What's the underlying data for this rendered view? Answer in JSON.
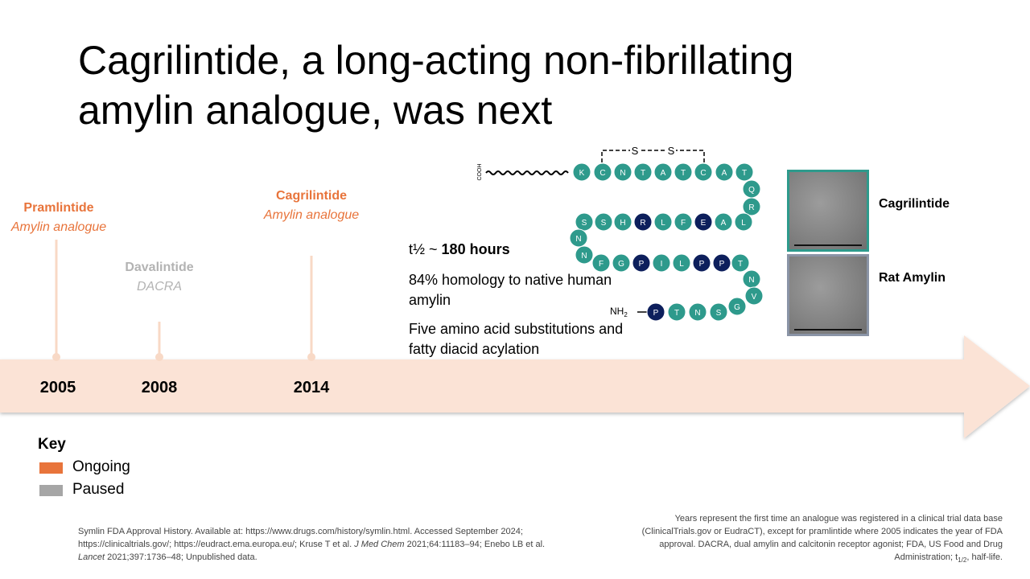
{
  "title": "Cagrilintide, a long-acting non-fibrillating amylin analogue, was next",
  "timeline": [
    {
      "name": "Pramlintide",
      "description": "Amylin analogue",
      "year": "2005",
      "status_color": "#e8743b"
    },
    {
      "name": "Davalintide",
      "description": "DACRA",
      "year": "2008",
      "status_color": "#b3b3b3"
    },
    {
      "name": "Cagrilintide",
      "description": "Amylin analogue",
      "year": "2014",
      "status_color": "#e8743b"
    }
  ],
  "properties": {
    "half_life": {
      "prefix": "t½ ~",
      "value": "180 hours"
    },
    "homology": "84% homology to native human amylin",
    "substitutions": "Five amino acid substitutions and fatty diacid acylation"
  },
  "peptide": {
    "c_terminus": "COOH",
    "n_terminus": {
      "text": "NH",
      "subscript": "2"
    },
    "disulfide": [
      "S",
      "S"
    ],
    "residues": [
      {
        "letter": "K",
        "color": "#2e9a8c"
      },
      {
        "letter": "C",
        "color": "#2e9a8c"
      },
      {
        "letter": "N",
        "color": "#2e9a8c"
      },
      {
        "letter": "T",
        "color": "#2e9a8c"
      },
      {
        "letter": "A",
        "color": "#2e9a8c"
      },
      {
        "letter": "T",
        "color": "#2e9a8c"
      },
      {
        "letter": "C",
        "color": "#2e9a8c"
      },
      {
        "letter": "A",
        "color": "#2e9a8c"
      },
      {
        "letter": "T",
        "color": "#2e9a8c"
      },
      {
        "letter": "Q",
        "color": "#2e9a8c"
      },
      {
        "letter": "R",
        "color": "#2e9a8c"
      },
      {
        "letter": "L",
        "color": "#2e9a8c"
      },
      {
        "letter": "A",
        "color": "#2e9a8c"
      },
      {
        "letter": "E",
        "color": "#0d1f5c"
      },
      {
        "letter": "F",
        "color": "#2e9a8c"
      },
      {
        "letter": "L",
        "color": "#2e9a8c"
      },
      {
        "letter": "R",
        "color": "#0d1f5c"
      },
      {
        "letter": "H",
        "color": "#2e9a8c"
      },
      {
        "letter": "S",
        "color": "#2e9a8c"
      },
      {
        "letter": "S",
        "color": "#2e9a8c"
      },
      {
        "letter": "N",
        "color": "#2e9a8c"
      },
      {
        "letter": "N",
        "color": "#2e9a8c"
      },
      {
        "letter": "F",
        "color": "#2e9a8c"
      },
      {
        "letter": "G",
        "color": "#2e9a8c"
      },
      {
        "letter": "P",
        "color": "#0d1f5c"
      },
      {
        "letter": "I",
        "color": "#2e9a8c"
      },
      {
        "letter": "L",
        "color": "#2e9a8c"
      },
      {
        "letter": "P",
        "color": "#0d1f5c"
      },
      {
        "letter": "P",
        "color": "#0d1f5c"
      },
      {
        "letter": "T",
        "color": "#2e9a8c"
      },
      {
        "letter": "N",
        "color": "#2e9a8c"
      },
      {
        "letter": "V",
        "color": "#2e9a8c"
      },
      {
        "letter": "G",
        "color": "#2e9a8c"
      },
      {
        "letter": "S",
        "color": "#2e9a8c"
      },
      {
        "letter": "N",
        "color": "#2e9a8c"
      },
      {
        "letter": "T",
        "color": "#2e9a8c"
      },
      {
        "letter": "P",
        "color": "#0d1f5c"
      }
    ]
  },
  "micrographs": [
    {
      "label": "Cagrilintide",
      "border_color": "#2e9a8c"
    },
    {
      "label": "Rat Amylin",
      "border_color": "#8a94a6"
    }
  ],
  "key": {
    "title": "Key",
    "items": [
      {
        "label": "Ongoing",
        "color": "#e8743b"
      },
      {
        "label": "Paused",
        "color": "#a6a6a6"
      }
    ]
  },
  "references": [
    "Symlin FDA Approval History. Available at: https://www.drugs.com/history/symlin.html. Accessed September 2024; https://clinicaltrials.gov/; https://eudract.ema.europa.eu/; Kruse T et al. ",
    "J Med Chem",
    " 2021;64:11183–94; Enebo LB et al. ",
    "Lancet",
    " 2021;397:1736–48; Unpublished data."
  ],
  "note": [
    "Years represent the first time an analogue was registered in a clinical trial data base (ClinicalTrials.gov or EudraCT), except for pramlintide where 2005 indicates the year of FDA approval. DACRA, dual amylin and calcitonin receptor agonist; FDA, US Food and Drug Administration; t",
    "1/2",
    ", half-life."
  ]
}
